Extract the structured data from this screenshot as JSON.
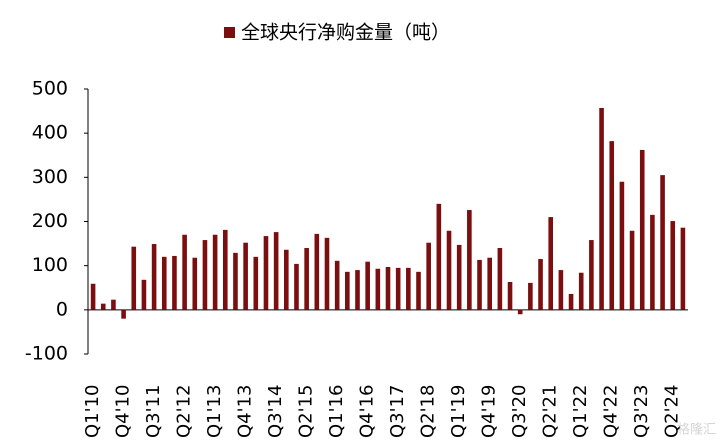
{
  "chart_data": {
    "type": "bar",
    "series": [
      {
        "name": "全球央行净购金量（吨）",
        "color": "#7b0f0f",
        "values": [
          59,
          14,
          23,
          -20,
          143,
          68,
          149,
          120,
          122,
          170,
          118,
          158,
          170,
          181,
          129,
          152,
          120,
          167,
          176,
          136,
          104,
          140,
          172,
          163,
          111,
          86,
          90,
          109,
          93,
          97,
          95,
          95,
          86,
          152,
          240,
          179,
          147,
          226,
          113,
          118,
          140,
          63,
          -10,
          61,
          115,
          210,
          90,
          36,
          84,
          158,
          457,
          382,
          290,
          179,
          362,
          215,
          305,
          201,
          186
        ]
      }
    ],
    "categories": [
      "Q1'10",
      null,
      null,
      "Q4'10",
      null,
      null,
      "Q3'11",
      null,
      null,
      "Q2'12",
      null,
      null,
      "Q1'13",
      null,
      null,
      "Q4'13",
      null,
      null,
      "Q3'14",
      null,
      null,
      "Q2'15",
      null,
      null,
      "Q1'16",
      null,
      null,
      "Q4'16",
      null,
      null,
      "Q3'17",
      null,
      null,
      "Q2'18",
      null,
      null,
      "Q1'19",
      null,
      null,
      "Q4'19",
      null,
      null,
      "Q3'20",
      null,
      null,
      "Q2'21",
      null,
      null,
      "Q1'22",
      null,
      null,
      "Q4'22",
      null,
      null,
      "Q3'23",
      null,
      null,
      "Q2'24",
      null
    ],
    "ylim": [
      -100,
      500
    ],
    "yticks": [
      -100,
      0,
      100,
      200,
      300,
      400,
      500
    ],
    "watermark": "格隆汇"
  }
}
